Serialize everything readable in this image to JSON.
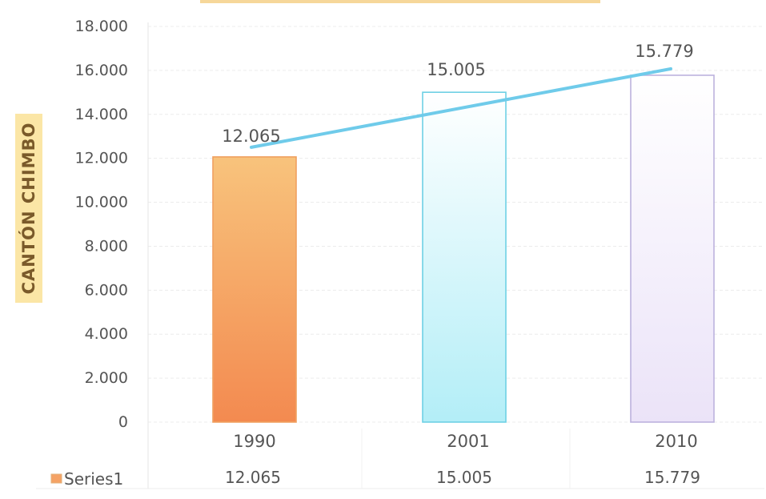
{
  "chart_data": {
    "type": "bar",
    "title": "",
    "xlabel": "",
    "ylabel": "CANTÓN CHIMBO",
    "categories": [
      "1990",
      "2001",
      "2010"
    ],
    "series": [
      {
        "name": "Series1",
        "values": [
          12065,
          15005,
          15779
        ]
      }
    ],
    "value_labels": [
      "12.065",
      "15.005",
      "15.779"
    ],
    "ylim": [
      0,
      18000
    ],
    "yticks": [
      0,
      2000,
      4000,
      6000,
      8000,
      10000,
      12000,
      14000,
      16000,
      18000
    ],
    "ytick_labels": [
      "0",
      "2.000",
      "4.000",
      "6.000",
      "8.000",
      "10.000",
      "12.000",
      "14.000",
      "16.000",
      "18.000"
    ],
    "trend_line": true,
    "grid": true,
    "data_table": true,
    "bar_colors": [
      "#f5a265",
      "#bff0f8",
      "#f1ecfa"
    ],
    "bar_edge_colors": [
      "#f0a060",
      "#6ed0e4",
      "#bcb2de"
    ],
    "line_color": "#6fcbea",
    "axis_label_highlight": "#fbe6a6"
  }
}
